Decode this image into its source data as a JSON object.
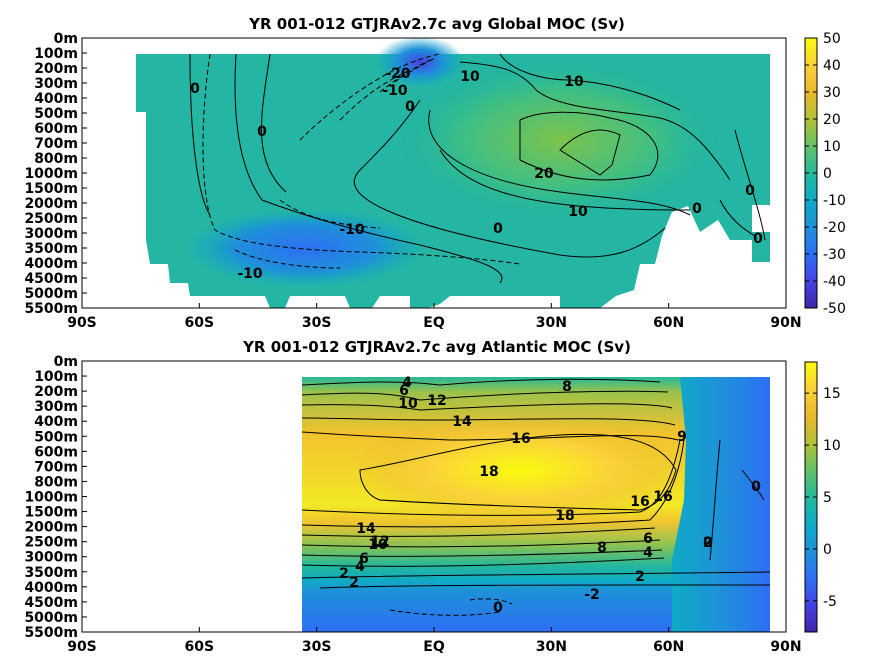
{
  "chart_data": [
    {
      "type": "heatmap",
      "title": "YR 001-012 GTJRAv2.7c avg  Global MOC (Sv)",
      "x_ticks": [
        "90S",
        "60S",
        "30S",
        "EQ",
        "30N",
        "60N",
        "90N"
      ],
      "x_values": [
        -90,
        -60,
        -30,
        0,
        30,
        60,
        90
      ],
      "y_ticks": [
        "0m",
        "100m",
        "200m",
        "300m",
        "400m",
        "500m",
        "600m",
        "700m",
        "800m",
        "1000m",
        "1500m",
        "2000m",
        "2500m",
        "3000m",
        "3500m",
        "4000m",
        "4500m",
        "5000m",
        "5500m"
      ],
      "colorbar_ticks": [
        "50",
        "40",
        "30",
        "20",
        "10",
        "0",
        "-10",
        "-20",
        "-30",
        "-40",
        "-50"
      ],
      "clim": [
        -50,
        50
      ],
      "colormap": "parula",
      "contour_labels": [
        "-20",
        "10",
        "10",
        "-10",
        "0",
        "0",
        "0",
        "0",
        "20",
        "10",
        "-10",
        "0",
        "0",
        "0",
        "-10"
      ]
    },
    {
      "type": "heatmap",
      "title": "YR 001-012 GTJRAv2.7c avg  Atlantic MOC (Sv)",
      "x_ticks": [
        "90S",
        "60S",
        "30S",
        "EQ",
        "30N",
        "60N",
        "90N"
      ],
      "x_values": [
        -90,
        -60,
        -30,
        0,
        30,
        60,
        90
      ],
      "y_ticks": [
        "0m",
        "100m",
        "200m",
        "300m",
        "400m",
        "500m",
        "600m",
        "700m",
        "800m",
        "1000m",
        "1500m",
        "2000m",
        "2500m",
        "3000m",
        "3500m",
        "4000m",
        "4500m",
        "5000m",
        "5500m"
      ],
      "colorbar_ticks": [
        "15",
        "10",
        "5",
        "0",
        "-5"
      ],
      "clim": [
        -8,
        18
      ],
      "colormap": "parula",
      "contour_labels": [
        "4",
        "6",
        "8",
        "10",
        "12",
        "14",
        "16",
        "18",
        "16",
        "18",
        "9",
        "16",
        "14",
        "12",
        "10",
        "8",
        "6",
        "4",
        "6",
        "4",
        "2",
        "0",
        "2",
        "2",
        "2",
        "0",
        "-2",
        "0"
      ]
    }
  ],
  "colors": {
    "parula": [
      "#3e26a8",
      "#4743e3",
      "#2d6ff4",
      "#1e91d9",
      "#10aac6",
      "#24b89a",
      "#63c366",
      "#b3c038",
      "#e9b92f",
      "#fad13a",
      "#f9fb0e"
    ],
    "land": "#ffffff",
    "contour": "#000000"
  }
}
